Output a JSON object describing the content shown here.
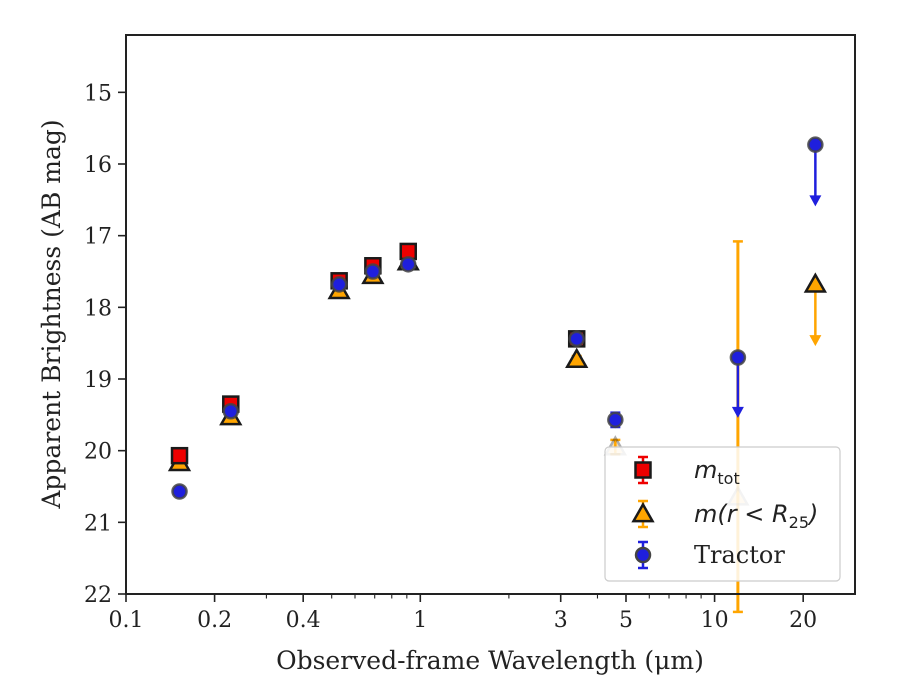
{
  "chart_data": {
    "type": "scatter",
    "xlabel": "Observed-frame Wavelength (μm)",
    "ylabel": "Apparent Brightness (AB mag)",
    "x_scale": "log",
    "xlim": [
      0.1,
      30
    ],
    "ylim": [
      22,
      14.2
    ],
    "y_inverted": true,
    "x_ticks": [
      {
        "value": 0.1,
        "label": "0.1"
      },
      {
        "value": 0.2,
        "label": "0.2"
      },
      {
        "value": 0.4,
        "label": "0.4"
      },
      {
        "value": 1,
        "label": "1"
      },
      {
        "value": 3,
        "label": "3"
      },
      {
        "value": 5,
        "label": "5"
      },
      {
        "value": 10,
        "label": "10"
      },
      {
        "value": 20,
        "label": "20"
      }
    ],
    "y_ticks": [
      {
        "value": 15,
        "label": "15"
      },
      {
        "value": 16,
        "label": "16"
      },
      {
        "value": 17,
        "label": "17"
      },
      {
        "value": 18,
        "label": "18"
      },
      {
        "value": 19,
        "label": "19"
      },
      {
        "value": 20,
        "label": "20"
      },
      {
        "value": 21,
        "label": "21"
      },
      {
        "value": 22,
        "label": "22"
      }
    ],
    "grid": false,
    "legend_position": "lower-right",
    "series": [
      {
        "key": "mtot",
        "legend_main": "m",
        "legend_sub": "tot",
        "marker": "square",
        "color": "#ee0000",
        "edge": "#1a1a1a",
        "points": [
          {
            "x": 0.152,
            "y": 20.07,
            "err": 0.06
          },
          {
            "x": 0.227,
            "y": 19.35,
            "err": 0.06
          },
          {
            "x": 0.53,
            "y": 17.63,
            "err": 0.06
          },
          {
            "x": 0.69,
            "y": 17.42,
            "err": 0.06
          },
          {
            "x": 0.91,
            "y": 17.22,
            "err": 0.06
          },
          {
            "x": 3.4,
            "y": 18.44,
            "err": 0.04
          }
        ]
      },
      {
        "key": "mr25",
        "legend_main": "m(r < R",
        "legend_sub": "25",
        "legend_tail": ")",
        "marker": "triangle",
        "color": "#ffa500",
        "edge": "#1a1a1a",
        "points": [
          {
            "x": 0.152,
            "y": 20.17,
            "err": 0.05
          },
          {
            "x": 0.227,
            "y": 19.53,
            "err": 0.05
          },
          {
            "x": 0.53,
            "y": 17.77,
            "err": 0.05
          },
          {
            "x": 0.69,
            "y": 17.56,
            "err": 0.05
          },
          {
            "x": 0.91,
            "y": 17.37,
            "err": 0.05
          },
          {
            "x": 3.4,
            "y": 18.73,
            "err": 0.05
          },
          {
            "x": 4.6,
            "y": 19.95,
            "err": 0.1,
            "faded": true
          },
          {
            "x": 12.0,
            "y": 20.65,
            "err_upper": 3.57,
            "err_lower": 1.6,
            "faded": true
          },
          {
            "x": 22.0,
            "y": 17.68,
            "upper_limit": true,
            "arrow_to": 18.5
          }
        ]
      },
      {
        "key": "tractor",
        "legend_main": "Tractor",
        "marker": "circle",
        "color": "#1f1fdd",
        "edge": "#444444",
        "points": [
          {
            "x": 0.152,
            "y": 20.57,
            "err": 0.05
          },
          {
            "x": 0.227,
            "y": 19.45,
            "err": 0.05
          },
          {
            "x": 0.53,
            "y": 17.68,
            "err": 0.05
          },
          {
            "x": 0.69,
            "y": 17.5,
            "err": 0.05
          },
          {
            "x": 0.91,
            "y": 17.4,
            "err": 0.05
          },
          {
            "x": 3.4,
            "y": 18.44,
            "err": 0.04
          },
          {
            "x": 4.6,
            "y": 19.57,
            "err": 0.1
          },
          {
            "x": 12.0,
            "y": 18.7,
            "upper_limit": true,
            "arrow_to": 19.5
          },
          {
            "x": 22.0,
            "y": 15.73,
            "upper_limit": true,
            "arrow_to": 16.55
          }
        ]
      }
    ]
  }
}
